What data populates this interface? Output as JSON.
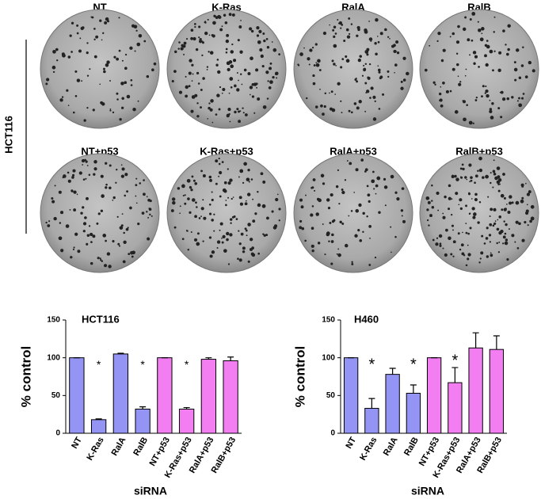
{
  "plates": {
    "side_label": "HCT116",
    "labels": [
      "NT",
      "K-Ras",
      "RalA",
      "RalB",
      "NT+p53",
      "K-Ras+p53",
      "RalA+p53",
      "RalB+p53"
    ]
  },
  "chart_data": [
    {
      "type": "bar",
      "title": "HCT116",
      "y_label": "% control",
      "x_label": "siRNA",
      "categories": [
        "NT",
        "K-Ras",
        "RalA",
        "RalB",
        "NT+p53",
        "K-Ras+p53",
        "RalA+p53",
        "RalB+p53"
      ],
      "values": [
        100,
        18,
        105,
        32,
        100,
        32,
        98,
        96
      ],
      "errors": [
        0,
        1,
        1,
        3,
        0,
        2,
        2,
        5
      ],
      "colors": [
        "#9494f4",
        "#9494f4",
        "#9494f4",
        "#9494f4",
        "#f27ef2",
        "#f27ef2",
        "#f27ef2",
        "#f27ef2"
      ],
      "ylim": [
        0,
        150
      ],
      "yticks": [
        0,
        50,
        100,
        150
      ],
      "annotations": [
        {
          "text": "*",
          "category": "K-Ras"
        },
        {
          "text": "*",
          "category": "RalB"
        },
        {
          "text": "*",
          "category": "K-Ras+p53"
        }
      ]
    },
    {
      "type": "bar",
      "title": "H460",
      "y_label": "% control",
      "x_label": "siRNA",
      "categories": [
        "NT",
        "K-Ras",
        "RalA",
        "RalB",
        "NT+p53",
        "K-Ras+p53",
        "RalA+p53",
        "RalB+p53"
      ],
      "values": [
        100,
        33,
        78,
        53,
        100,
        67,
        113,
        111
      ],
      "errors": [
        0,
        13,
        8,
        11,
        0,
        20,
        20,
        18
      ],
      "colors": [
        "#9494f4",
        "#9494f4",
        "#9494f4",
        "#9494f4",
        "#f27ef2",
        "#f27ef2",
        "#f27ef2",
        "#f27ef2"
      ],
      "ylim": [
        0,
        150
      ],
      "yticks": [
        0,
        50,
        100,
        150
      ],
      "annotations": [
        {
          "text": "*",
          "category": "K-Ras"
        },
        {
          "text": "*",
          "category": "RalB"
        },
        {
          "text": "*",
          "category": "K-Ras+p53"
        }
      ]
    }
  ]
}
